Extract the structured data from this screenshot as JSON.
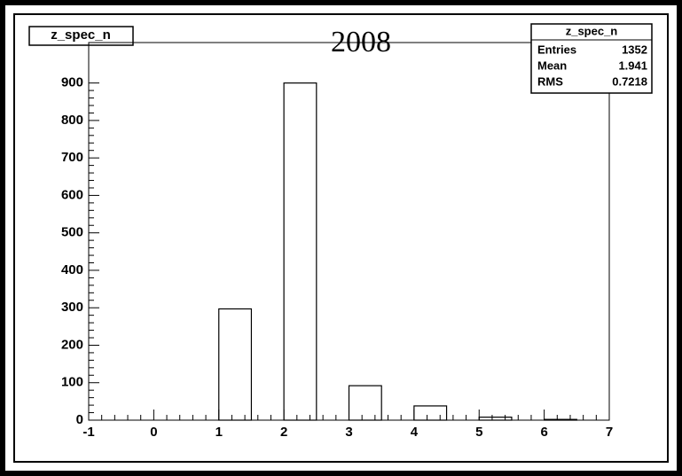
{
  "chart_data": {
    "type": "histogram",
    "title": "2008",
    "name": "z_spec_n",
    "bins": [
      -1,
      -0.5,
      0,
      0.5,
      1,
      1.5,
      2,
      2.5,
      3,
      3.5,
      4,
      4.5,
      5,
      5.5,
      6,
      6.5,
      7
    ],
    "values": [
      0,
      0,
      0,
      0,
      297,
      0,
      900,
      0,
      92,
      0,
      38,
      0,
      8,
      0,
      2,
      0
    ],
    "color": "#000000",
    "xlim": [
      -1,
      7
    ],
    "xticks": [
      -1,
      0,
      1,
      2,
      3,
      4,
      5,
      6,
      7
    ],
    "ylim": [
      0,
      1008
    ],
    "yticks": [
      0,
      100,
      200,
      300,
      400,
      500,
      600,
      700,
      800,
      900
    ],
    "stats": [
      {
        "label": "Entries",
        "value": 1352
      },
      {
        "label": "Mean",
        "value": 1.941
      },
      {
        "label": "RMS",
        "value": 0.7218
      }
    ]
  }
}
